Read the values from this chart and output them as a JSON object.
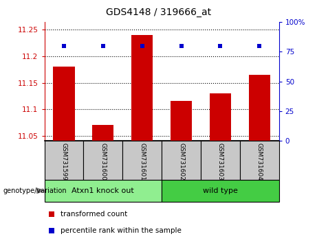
{
  "title": "GDS4148 / 319666_at",
  "samples": [
    "GSM731599",
    "GSM731600",
    "GSM731601",
    "GSM731602",
    "GSM731603",
    "GSM731604"
  ],
  "bar_values": [
    11.18,
    11.07,
    11.24,
    11.115,
    11.13,
    11.165
  ],
  "percentile_values": [
    80,
    80,
    80,
    80,
    80,
    80
  ],
  "bar_color": "#cc0000",
  "percentile_color": "#0000cc",
  "ylim_left": [
    11.04,
    11.265
  ],
  "ylim_right": [
    0,
    100
  ],
  "yticks_left": [
    11.05,
    11.1,
    11.15,
    11.2,
    11.25
  ],
  "yticks_right": [
    0,
    25,
    50,
    75,
    100
  ],
  "left_axis_color": "#cc0000",
  "right_axis_color": "#0000cc",
  "groups": [
    {
      "label": "Atxn1 knock out",
      "samples": [
        0,
        1,
        2
      ],
      "color": "#90ee90"
    },
    {
      "label": "wild type",
      "samples": [
        3,
        4,
        5
      ],
      "color": "#44cc44"
    }
  ],
  "group_label": "genotype/variation",
  "legend_items": [
    {
      "label": "transformed count",
      "color": "#cc0000"
    },
    {
      "label": "percentile rank within the sample",
      "color": "#0000cc"
    }
  ],
  "grid_color": "#000000",
  "sample_bg_color": "#c8c8c8",
  "bar_width": 0.55
}
